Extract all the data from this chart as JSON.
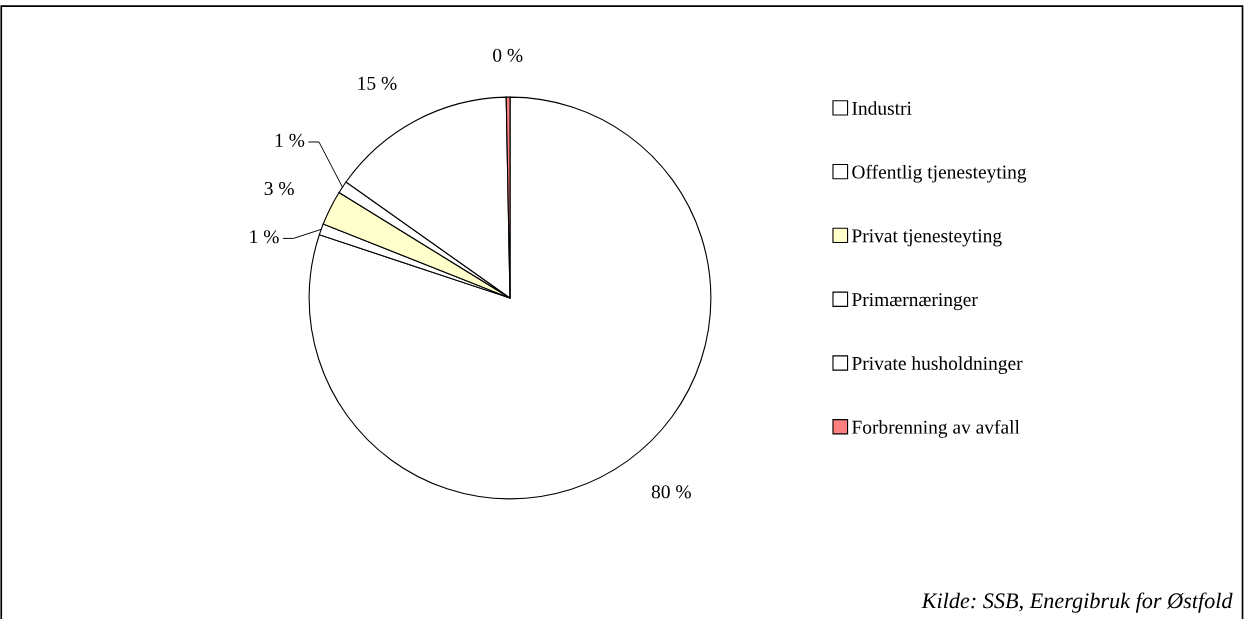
{
  "chart_data": {
    "type": "pie",
    "categories": [
      "Industri",
      "Offentlig tjenesteyting",
      "Privat tjenesteyting",
      "Primærnæringer",
      "Private husholdninger",
      "Forbrenning av avfall"
    ],
    "values": [
      80.1,
      0.9,
      2.8,
      1.0,
      14.9,
      0.3
    ],
    "value_labels": [
      "80 %",
      "1 %",
      "3 %",
      "1 %",
      "15 %",
      "0 %"
    ],
    "colors": [
      "#ffffff",
      "#ffffff",
      "#ffffcc",
      "#ffffff",
      "#ffffff",
      "#ff8080"
    ],
    "legend": "right",
    "annotations": [
      "Kilde: SSB, Energibruk for Østfold"
    ]
  }
}
